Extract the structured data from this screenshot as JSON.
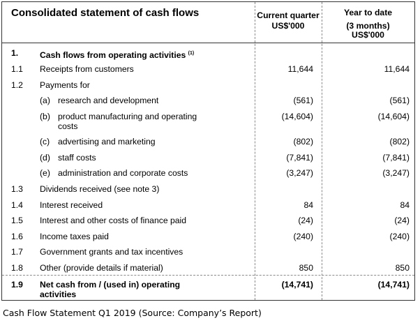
{
  "table": {
    "title": "Consolidated statement of cash flows",
    "col_current": {
      "line1": "Current quarter",
      "line2": "US$'000"
    },
    "col_ytd": {
      "line1": "Year to date",
      "line2": "(3 months)",
      "line3": "US$'000"
    },
    "section": {
      "num": "1.",
      "label": "Cash flows from operating activities",
      "note": "(1)"
    },
    "rows": [
      {
        "num": "1.1",
        "label": "Receipts from customers",
        "current": "11,644",
        "ytd": "11,644"
      },
      {
        "num": "1.2",
        "label": "Payments for",
        "current": "",
        "ytd": ""
      },
      {
        "num": "",
        "sub": "(a)",
        "label": "research and development",
        "current": "(561)",
        "ytd": "(561)"
      },
      {
        "num": "",
        "sub": "(b)",
        "label": "product manufacturing and operating",
        "label2": "costs",
        "current": "(14,604)",
        "ytd": "(14,604)"
      },
      {
        "num": "",
        "sub": "(c)",
        "label": "advertising and marketing",
        "current": "(802)",
        "ytd": "(802)"
      },
      {
        "num": "",
        "sub": "(d)",
        "label": "staff costs",
        "current": "(7,841)",
        "ytd": "(7,841)"
      },
      {
        "num": "",
        "sub": "(e)",
        "label": "administration and corporate costs",
        "current": "(3,247)",
        "ytd": "(3,247)"
      },
      {
        "num": "1.3",
        "label": "Dividends received (see note 3)",
        "current": "",
        "ytd": ""
      },
      {
        "num": "1.4",
        "label": "Interest received",
        "current": "84",
        "ytd": "84"
      },
      {
        "num": "1.5",
        "label": "Interest and other costs of finance paid",
        "current": "(24)",
        "ytd": "(24)"
      },
      {
        "num": "1.6",
        "label": "Income taxes paid",
        "current": "(240)",
        "ytd": "(240)"
      },
      {
        "num": "1.7",
        "label": "Government grants and tax incentives",
        "current": "",
        "ytd": ""
      },
      {
        "num": "1.8",
        "label": "Other (provide details if material)",
        "current": "850",
        "ytd": "850"
      }
    ],
    "total": {
      "num": "1.9",
      "label": "Net cash from / (used in) operating",
      "label2": "activities",
      "current": "(14,741)",
      "ytd": "(14,741)"
    }
  },
  "caption": "Cash Flow Statement Q1 2019 (Source: Company’s Report)"
}
